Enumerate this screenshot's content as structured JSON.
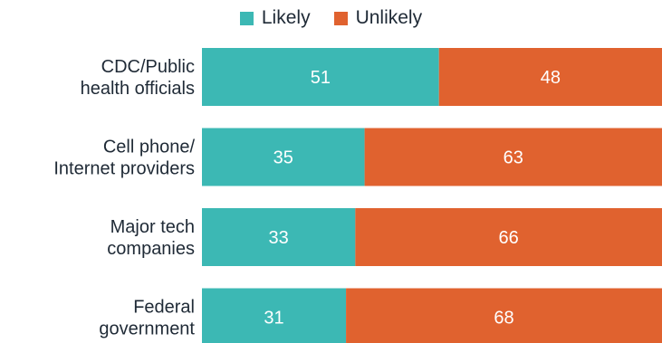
{
  "chart_data": {
    "type": "bar",
    "orientation": "horizontal",
    "stacked": true,
    "categories": [
      [
        "CDC/Public",
        "health officials"
      ],
      [
        "Cell phone/",
        "Internet providers"
      ],
      [
        "Major tech",
        "companies"
      ],
      [
        "Federal",
        "government"
      ]
    ],
    "series": [
      {
        "name": "Likely",
        "values": [
          51,
          35,
          33,
          31
        ],
        "color": "#3cb8b4"
      },
      {
        "name": "Unlikely",
        "values": [
          48,
          63,
          66,
          68
        ],
        "color": "#e0622f"
      }
    ],
    "xlim": [
      0,
      99
    ],
    "grid": false,
    "legend_position": "top-center"
  }
}
